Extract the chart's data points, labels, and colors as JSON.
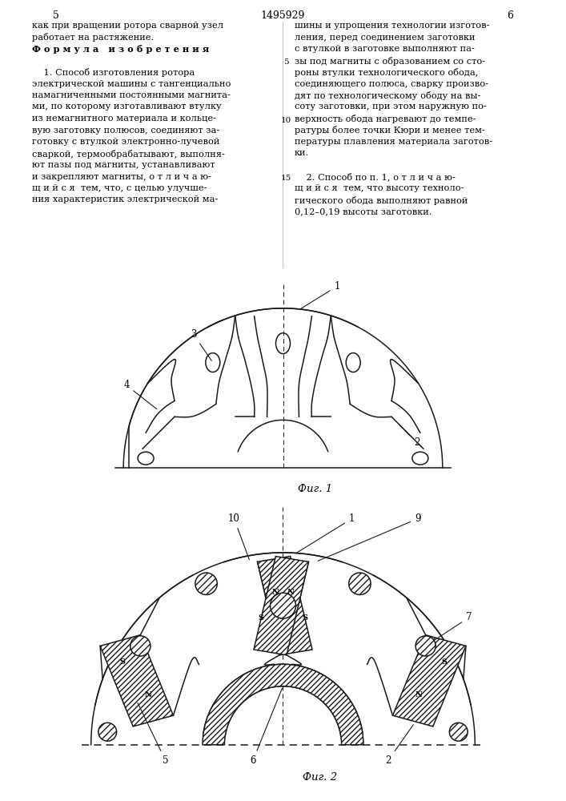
{
  "page_number_left": "5",
  "page_number_center": "1495929",
  "page_number_right": "6",
  "text_left_lines": [
    "как при вращении ротора сварной узел",
    "работает на растяжение.",
    "Ф о р м у л а   и з о б р е т е н и я",
    "",
    "    1. Способ изготовления ротора",
    "электрической машины с тангенциально",
    "намагниченными постоянными магнита-",
    "ми, по которому изготавливают втулку",
    "из немагнитного материала и кольце-",
    "вую заготовку полюсов, соединяют за-",
    "готовку с втулкой электронно-лучевой",
    "сваркой, термообрабатывают, выполня-",
    "ют пазы под магниты, устанавливают",
    "и закрепляют магниты, о т л и ч а ю-",
    "щ и й с я  тем, что, с целью улучше-",
    "ния характеристик электрической ма-"
  ],
  "text_right_lines": [
    "шины и упрощения технологии изготов-",
    "ления, перед соединением заготовки",
    "с втулкой в заготовке выполняют па-",
    "зы под магниты с образованием со сто-",
    "роны втулки технологического обода,",
    "соединяющего полюса, сварку произво-",
    "дят по технологическому ободу на вы-",
    "соту заготовки, при этом наружную по-",
    "верхность обода нагревают до темпе-",
    "ратуры более точки Кюри и менее тем-",
    "пературы плавления материала заготов-",
    "ки.",
    "",
    "    2. Способ по п. 1, о т л и ч а ю-",
    "щ и й с я  тем, что высоту техноло-",
    "гического обода выполняют равной",
    "0,12–0,19 высоты заготовки."
  ],
  "line_numbers": [
    5,
    10,
    15
  ],
  "line_number_rows": [
    4,
    9,
    14
  ],
  "fig1_caption": "Фиг. 1",
  "fig2_caption": "Фиг. 2",
  "line_color": "#1a1a1a",
  "font_size_text": 8.2,
  "font_size_caption": 9.5,
  "font_size_label": 8.5
}
